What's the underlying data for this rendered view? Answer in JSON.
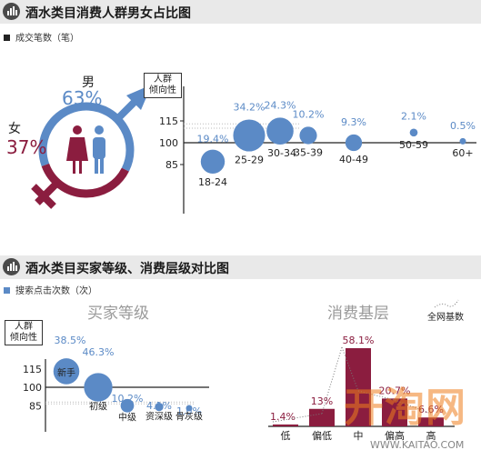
{
  "section1": {
    "title": "酒水类目消费人群男女占比图",
    "legend": "成交笔数（笔）",
    "gender": {
      "male_label": "男",
      "male_pct": "63%",
      "female_label": "女",
      "female_pct": "37%",
      "male_value": 63,
      "female_value": 37,
      "male_color": "#5b8ac6",
      "female_color": "#8b1d3f"
    },
    "y_axis_label": "人群\n倾向性"
  },
  "section2": {
    "title": "酒水类目买家等级、消费层级对比图",
    "legend": "搜索点击次数（次）",
    "buyer_title": "买家等级",
    "consumer_title": "消费基层",
    "baseline_label": "全网基数",
    "y_axis_label": "人群\n倾向性"
  },
  "watermark": {
    "logo": "开淘网",
    "url": "WWW.KAITAO.COM"
  },
  "chart_data": [
    {
      "type": "pie",
      "title": "",
      "categories": [
        "男",
        "女"
      ],
      "values": [
        63,
        37
      ],
      "colors": [
        "#5b8ac6",
        "#8b1d3f"
      ]
    },
    {
      "type": "scatter",
      "title": "",
      "ylabel": "人群倾向性",
      "yticks": [
        85,
        100,
        115
      ],
      "baseline": 100,
      "points": [
        {
          "label": "18-24",
          "share": "19.4%",
          "share_value": 19.4,
          "y": 87
        },
        {
          "label": "25-29",
          "share": "34.2%",
          "share_value": 34.2,
          "y": 105
        },
        {
          "label": "30-34",
          "share": "24.3%",
          "share_value": 24.3,
          "y": 108
        },
        {
          "label": "35-39",
          "share": "10.2%",
          "share_value": 10.2,
          "y": 105
        },
        {
          "label": "40-49",
          "share": "9.3%",
          "share_value": 9.3,
          "y": 100
        },
        {
          "label": "50-59",
          "share": "2.1%",
          "share_value": 2.1,
          "y": 107
        },
        {
          "label": "60+",
          "share": "0.5%",
          "share_value": 0.5,
          "y": 101
        }
      ]
    },
    {
      "type": "scatter",
      "title": "买家等级",
      "ylabel": "人群倾向性",
      "yticks": [
        85,
        100,
        115
      ],
      "baseline": 100,
      "points": [
        {
          "label": "新手",
          "share": "38.5%",
          "share_value": 38.5,
          "y": 113
        },
        {
          "label": "初级",
          "share": "46.3%",
          "share_value": 46.3,
          "y": 100
        },
        {
          "label": "中级",
          "share": "10.2%",
          "share_value": 10.2,
          "y": 85
        },
        {
          "label": "资深级",
          "share": "4.1%",
          "share_value": 4.1,
          "y": 84
        },
        {
          "label": "骨灰级",
          "share": "1.0%",
          "share_value": 1.0,
          "y": 83
        }
      ]
    },
    {
      "type": "bar",
      "title": "消费基层",
      "categories": [
        "低",
        "偏低",
        "中",
        "偏高",
        "高"
      ],
      "values": [
        1.4,
        13,
        58.1,
        20.7,
        6.6
      ],
      "value_labels": [
        "1.4%",
        "13%",
        "58.1%",
        "20.7%",
        "6.6%"
      ],
      "baseline_series": "全网基数",
      "bar_color": "#8b1d3f"
    }
  ]
}
